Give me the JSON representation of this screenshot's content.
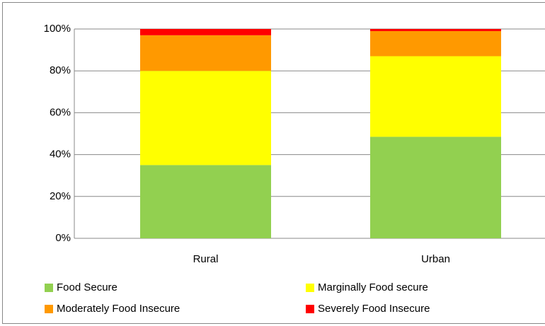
{
  "chart_data": {
    "type": "stacked_bar",
    "categories": [
      "Rural",
      "Urban"
    ],
    "series": [
      {
        "name": "Food Secure",
        "color": "#92d050",
        "values": [
          35,
          48.5
        ]
      },
      {
        "name": "Marginally Food secure",
        "color": "#ffff00",
        "values": [
          45,
          38.5
        ]
      },
      {
        "name": "Moderately Food Insecure",
        "color": "#ff9900",
        "values": [
          17,
          12
        ]
      },
      {
        "name": "Severely Food Insecure",
        "color": "#ff0000",
        "values": [
          3,
          1
        ]
      }
    ],
    "ylim": [
      0,
      100
    ],
    "yticks": [
      {
        "value": 0,
        "label": "0%"
      },
      {
        "value": 20,
        "label": "20%"
      },
      {
        "value": 40,
        "label": "40%"
      },
      {
        "value": 60,
        "label": "60%"
      },
      {
        "value": 80,
        "label": "80%"
      },
      {
        "value": 100,
        "label": "100%"
      }
    ],
    "grid": true,
    "legend": "bottom"
  }
}
